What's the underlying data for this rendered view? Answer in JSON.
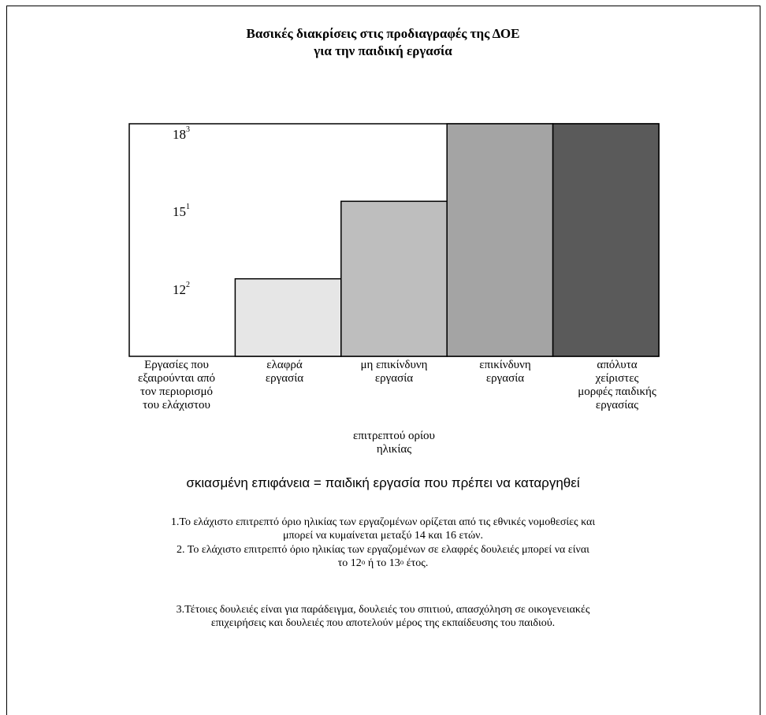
{
  "chart_data": {
    "type": "bar",
    "title": "Βασικές διακρίσεις στις προδιαγραφές της ΔΟΕ",
    "subtitle": "για την παιδική εργασία",
    "y_ticks": [
      {
        "value": 18,
        "sup": "3"
      },
      {
        "value": 15,
        "sup": "1"
      },
      {
        "value": 12,
        "sup": "2"
      }
    ],
    "ylim": [
      9,
      18
    ],
    "categories": [
      "Εργασίες που εξαιρούνται από τον περιορισμό του ελάχιστου",
      "ελαφρά εργασία",
      "μη επικίνδυνη εργασία",
      "επικίνδυνη εργασία",
      "απόλυτα χείριστες μορφές παιδικής εργασίας"
    ],
    "category_lines": [
      [
        "Εργασίες που",
        "εξαιρούνται από",
        "τον περιορισμό",
        "του ελάχιστου"
      ],
      [
        "ελαφρά",
        "εργασία"
      ],
      [
        "μη επικίνδυνη",
        "εργασία"
      ],
      [
        "επικίνδυνη",
        "εργασία"
      ],
      [
        "απόλυτα",
        "χείριστες",
        "μορφές παιδικής",
        "εργασίας"
      ]
    ],
    "values": [
      null,
      12,
      15,
      18,
      18
    ],
    "colors": [
      "#ffffff",
      "#e6e6e6",
      "#bebebe",
      "#a4a4a4",
      "#5a5a5a"
    ],
    "secondary_label": [
      "επιτρεπτού ορίου",
      "ηλικίας"
    ]
  },
  "legend": "σκιασμένη επιφάνεια =  παιδική εργασία που πρέπει να καταργηθεί",
  "notes": {
    "n1_line1": "1.Το ελάχιστο επιτρεπτό όριο ηλικίας των εργαζομένων ορίζεται από τις εθνικές νομοθεσίες και",
    "n1_line2": "μπορεί να κυμαίνεται μεταξύ 14 και 16 ετών.",
    "n2_line1": "2. Το ελάχιστο επιτρεπτό όριο ηλικίας των εργαζομένων σε ελαφρές δουλειές μπορεί να είναι",
    "n2_pre": "το 12",
    "n2_sup1": "ο",
    "n2_mid": " ή το 13",
    "n2_sup2": "ο",
    "n2_post": "  έτος.",
    "n3_line1": "3.Τέτοιες δουλειές  είναι για παράδειγμα, δουλειές του σπιτιού, απασχόληση σε οικογενειακές",
    "n3_line2": "επιχειρήσεις και δουλειές που αποτελούν μέρος της εκπαίδευσης του παιδιού."
  }
}
